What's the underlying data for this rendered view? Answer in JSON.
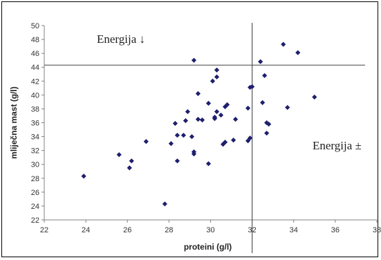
{
  "chart_data": {
    "type": "scatter",
    "xlabel": "proteini (g/l)",
    "ylabel": "mliječna mast (g/l)",
    "xlim": [
      22,
      38
    ],
    "ylim": [
      22,
      50
    ],
    "xticks": [
      22,
      24,
      26,
      28,
      30,
      32,
      34,
      36,
      38
    ],
    "yticks": [
      22,
      24,
      26,
      28,
      30,
      32,
      34,
      36,
      38,
      40,
      42,
      44,
      46,
      48,
      50
    ],
    "grid": false,
    "marker_color": "#1f1f6e",
    "reference_lines": {
      "vertical_x": 32,
      "horizontal_y": 44.3
    },
    "annotations": [
      "Energija ↓",
      "Energija ±"
    ],
    "points": [
      {
        "x": 23.9,
        "y": 28.3
      },
      {
        "x": 25.6,
        "y": 31.4
      },
      {
        "x": 26.1,
        "y": 29.5
      },
      {
        "x": 26.2,
        "y": 30.5
      },
      {
        "x": 26.9,
        "y": 33.3
      },
      {
        "x": 27.8,
        "y": 24.3
      },
      {
        "x": 28.1,
        "y": 33.0
      },
      {
        "x": 28.3,
        "y": 35.9
      },
      {
        "x": 28.4,
        "y": 34.2
      },
      {
        "x": 28.4,
        "y": 30.5
      },
      {
        "x": 28.7,
        "y": 34.2
      },
      {
        "x": 28.8,
        "y": 36.3
      },
      {
        "x": 28.9,
        "y": 37.6
      },
      {
        "x": 29.1,
        "y": 34.0
      },
      {
        "x": 29.2,
        "y": 31.8
      },
      {
        "x": 29.2,
        "y": 31.5
      },
      {
        "x": 29.2,
        "y": 45.0
      },
      {
        "x": 29.4,
        "y": 40.2
      },
      {
        "x": 29.4,
        "y": 36.5
      },
      {
        "x": 29.6,
        "y": 36.4
      },
      {
        "x": 29.9,
        "y": 30.1
      },
      {
        "x": 29.9,
        "y": 38.8
      },
      {
        "x": 30.1,
        "y": 42.0
      },
      {
        "x": 30.2,
        "y": 36.8
      },
      {
        "x": 30.2,
        "y": 36.6
      },
      {
        "x": 30.3,
        "y": 37.6
      },
      {
        "x": 30.3,
        "y": 42.6
      },
      {
        "x": 30.3,
        "y": 43.6
      },
      {
        "x": 30.5,
        "y": 37.1
      },
      {
        "x": 30.6,
        "y": 32.9
      },
      {
        "x": 30.7,
        "y": 33.2
      },
      {
        "x": 30.7,
        "y": 38.3
      },
      {
        "x": 30.8,
        "y": 38.6
      },
      {
        "x": 31.1,
        "y": 33.5
      },
      {
        "x": 31.2,
        "y": 36.5
      },
      {
        "x": 31.8,
        "y": 38.1
      },
      {
        "x": 31.8,
        "y": 33.4
      },
      {
        "x": 31.9,
        "y": 41.1
      },
      {
        "x": 31.9,
        "y": 33.8
      },
      {
        "x": 32.0,
        "y": 41.2
      },
      {
        "x": 32.4,
        "y": 44.8
      },
      {
        "x": 32.5,
        "y": 38.9
      },
      {
        "x": 32.6,
        "y": 42.8
      },
      {
        "x": 32.7,
        "y": 36.0
      },
      {
        "x": 32.7,
        "y": 34.5
      },
      {
        "x": 32.8,
        "y": 35.8
      },
      {
        "x": 33.5,
        "y": 47.3
      },
      {
        "x": 33.7,
        "y": 38.2
      },
      {
        "x": 34.2,
        "y": 46.1
      },
      {
        "x": 35.0,
        "y": 39.7
      }
    ]
  }
}
